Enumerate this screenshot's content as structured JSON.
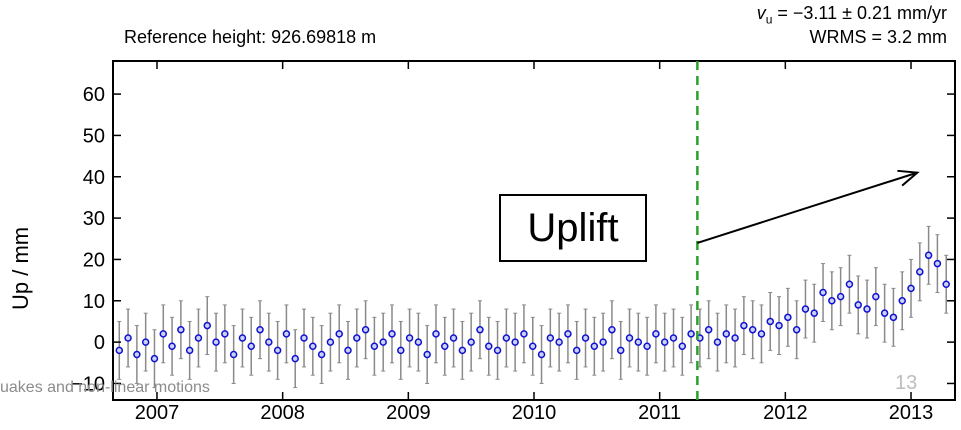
{
  "header": {
    "reference_height": "Reference height: 926.69818 m",
    "velocity_symbol": "v",
    "velocity_subscript": "u",
    "velocity_value": " = −3.11 ± 0.21 mm/yr",
    "wrms": "WRMS = 3.2 mm"
  },
  "annotation": {
    "uplift_label": "Uplift"
  },
  "footer": {
    "text": "uakes and non-linear motions",
    "slide_number": "13"
  },
  "colors": {
    "points": "#1010d0",
    "point_fill": "#c9d1f5",
    "errorbars": "#8a8a8a",
    "outliers": "#b0b0b0",
    "event_line": "#2aa02a",
    "arrow": "#000000"
  },
  "chart_data": {
    "type": "scatter",
    "xlabel": "",
    "ylabel": "Up / mm",
    "xlim": [
      2006.65,
      2013.35
    ],
    "ylim": [
      -14,
      68
    ],
    "yticks": [
      -10,
      0,
      10,
      20,
      30,
      40,
      50,
      60
    ],
    "ytick_labels": [
      "−10",
      "0",
      "10",
      "20",
      "30",
      "40",
      "50",
      "60"
    ],
    "xticks": [
      2007,
      2008,
      2009,
      2010,
      2011,
      2012,
      2013
    ],
    "xtick_labels": [
      "2007",
      "2008",
      "2009",
      "2010",
      "2011",
      "2012",
      "2013"
    ],
    "event_line_x": 2011.3,
    "uplift_arrow": {
      "from": [
        2011.3,
        24
      ],
      "to": [
        2013.05,
        41
      ]
    },
    "grid": false,
    "series": [
      {
        "x": [
          2006.7,
          2006.77,
          2006.84,
          2006.91,
          2006.98,
          2007.05,
          2007.12,
          2007.19,
          2007.26,
          2007.33,
          2007.4,
          2007.47,
          2007.54,
          2007.61,
          2007.68,
          2007.75,
          2007.82,
          2007.89,
          2007.96,
          2008.03,
          2008.1,
          2008.17,
          2008.24,
          2008.31,
          2008.38,
          2008.45,
          2008.52,
          2008.59,
          2008.66,
          2008.73,
          2008.8,
          2008.87,
          2008.94,
          2009.01,
          2009.08,
          2009.15,
          2009.22,
          2009.29,
          2009.36,
          2009.43,
          2009.5,
          2009.57,
          2009.64,
          2009.71,
          2009.78,
          2009.85,
          2009.92,
          2009.99,
          2010.06,
          2010.13,
          2010.2,
          2010.27,
          2010.34,
          2010.41,
          2010.48,
          2010.55,
          2010.62,
          2010.69,
          2010.76,
          2010.83,
          2010.9,
          2010.97,
          2011.04,
          2011.11,
          2011.18,
          2011.25,
          2011.32,
          2011.39,
          2011.46,
          2011.53,
          2011.6,
          2011.67,
          2011.74,
          2011.81,
          2011.88,
          2011.95,
          2012.02,
          2012.09,
          2012.16,
          2012.23,
          2012.3,
          2012.37,
          2012.44,
          2012.51,
          2012.58,
          2012.65,
          2012.72,
          2012.79,
          2012.86,
          2012.93,
          2013.0,
          2013.07,
          2013.14,
          2013.21,
          2013.28
        ],
        "y": [
          -2,
          1,
          -3,
          0,
          -4,
          2,
          -1,
          3,
          -2,
          1,
          4,
          0,
          2,
          -3,
          1,
          -1,
          3,
          0,
          -2,
          2,
          -4,
          1,
          -1,
          -3,
          0,
          2,
          -2,
          1,
          3,
          -1,
          0,
          2,
          -2,
          1,
          0,
          -3,
          2,
          -1,
          1,
          -2,
          0,
          3,
          -1,
          -2,
          1,
          0,
          2,
          -1,
          -3,
          1,
          0,
          2,
          -2,
          1,
          -1,
          0,
          3,
          -2,
          1,
          0,
          -1,
          2,
          0,
          1,
          -1,
          2,
          1,
          3,
          0,
          2,
          1,
          4,
          3,
          2,
          5,
          4,
          6,
          3,
          8,
          7,
          12,
          10,
          11,
          14,
          9,
          8,
          11,
          7,
          6,
          10,
          13,
          17,
          21,
          19,
          14
        ]
      }
    ]
  }
}
